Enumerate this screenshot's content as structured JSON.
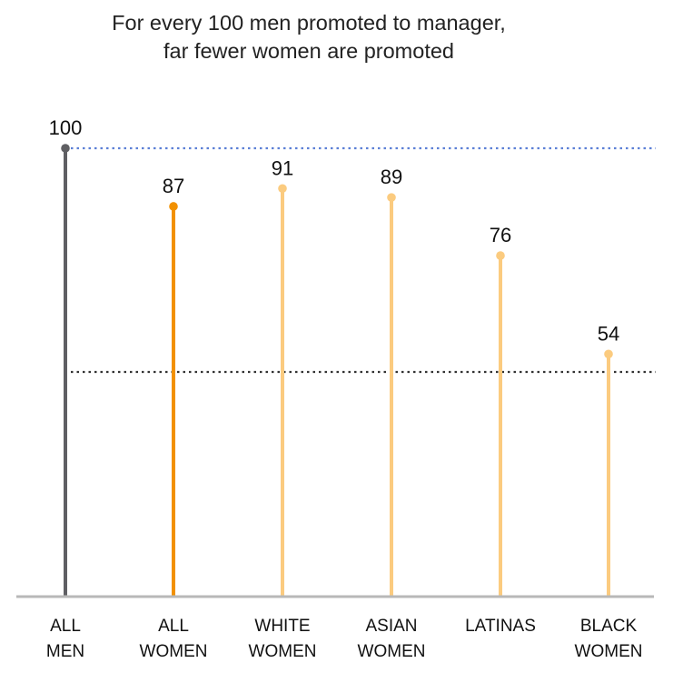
{
  "chart_data": {
    "type": "lollipop",
    "title": [
      "For every 100 men promoted to manager,",
      "far fewer women are promoted"
    ],
    "categories": [
      [
        "ALL",
        "MEN"
      ],
      [
        "ALL",
        "WOMEN"
      ],
      [
        "WHITE",
        "WOMEN"
      ],
      [
        "ASIAN",
        "WOMEN"
      ],
      [
        "LATINAS",
        ""
      ],
      [
        "BLACK",
        "WOMEN"
      ]
    ],
    "values": [
      100,
      87,
      91,
      89,
      76,
      54
    ],
    "value_labels": [
      "100",
      "87",
      "91",
      "89",
      "76",
      "54"
    ],
    "colors": [
      "#5f5f63",
      "#f29100",
      "#fbcb7f",
      "#fbcb7f",
      "#fbcb7f",
      "#fbcb7f"
    ],
    "reference_lines": [
      {
        "value": 100,
        "color": "#5b7fd6",
        "style": "dotted"
      },
      {
        "value": 50,
        "color": "#333333",
        "style": "dotted"
      }
    ],
    "ylim": [
      0,
      100
    ],
    "axis_color": "#b8b8b8",
    "grid": false,
    "legend": "none"
  }
}
